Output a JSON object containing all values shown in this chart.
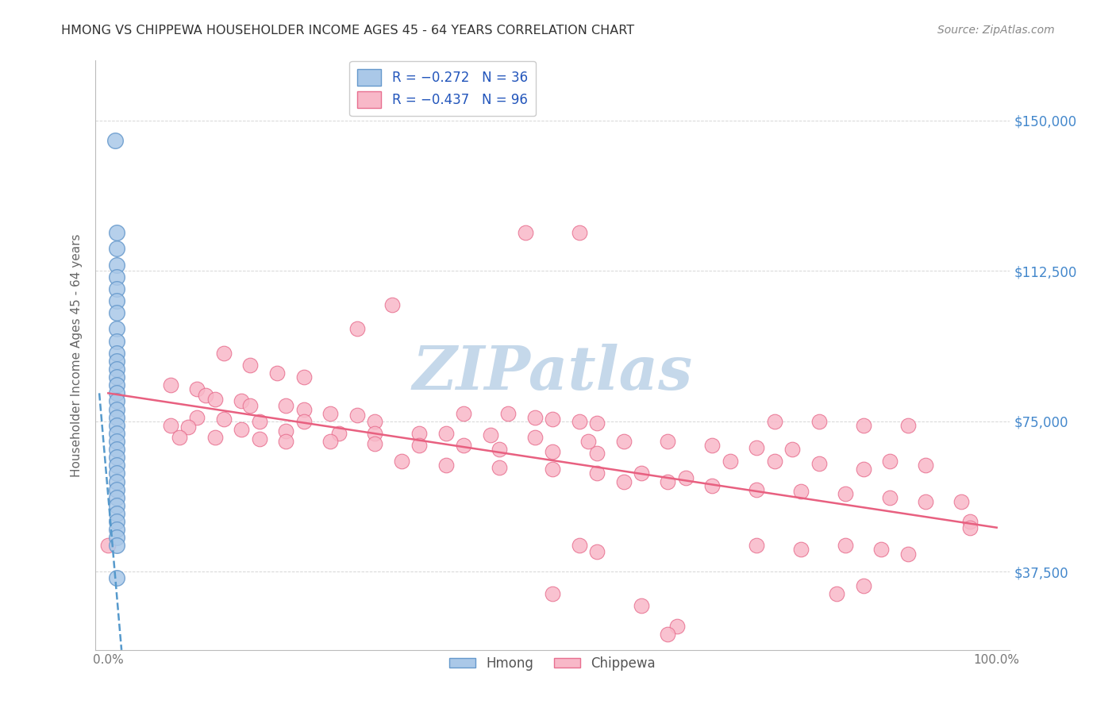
{
  "title": "HMONG VS CHIPPEWA HOUSEHOLDER INCOME AGES 45 - 64 YEARS CORRELATION CHART",
  "source": "Source: ZipAtlas.com",
  "ylabel": "Householder Income Ages 45 - 64 years",
  "y_tick_labels": [
    "$37,500",
    "$75,000",
    "$112,500",
    "$150,000"
  ],
  "y_tick_values": [
    37500,
    75000,
    112500,
    150000
  ],
  "ylim": [
    18000,
    165000
  ],
  "xlim": [
    -0.015,
    1.015
  ],
  "hmong_color": "#aac8e8",
  "hmong_edge_color": "#6699cc",
  "chippewa_color": "#f8b8c8",
  "chippewa_edge_color": "#e87090",
  "hmong_line_color": "#5599cc",
  "chippewa_line_color": "#e86080",
  "watermark": "ZIPatlas",
  "watermark_color": "#c5d8ea",
  "grid_color": "#cccccc",
  "title_color": "#333333",
  "source_color": "#888888",
  "axis_label_color": "#666666",
  "tick_label_color": "#777777",
  "right_tick_color": "#4488cc",
  "hmong_points": [
    [
      0.008,
      145000
    ],
    [
      0.01,
      122000
    ],
    [
      0.01,
      118000
    ],
    [
      0.01,
      114000
    ],
    [
      0.01,
      111000
    ],
    [
      0.01,
      108000
    ],
    [
      0.01,
      105000
    ],
    [
      0.01,
      102000
    ],
    [
      0.01,
      98000
    ],
    [
      0.01,
      95000
    ],
    [
      0.01,
      92000
    ],
    [
      0.01,
      90000
    ],
    [
      0.01,
      88000
    ],
    [
      0.01,
      86000
    ],
    [
      0.01,
      84000
    ],
    [
      0.01,
      82000
    ],
    [
      0.01,
      80000
    ],
    [
      0.01,
      78000
    ],
    [
      0.01,
      76000
    ],
    [
      0.01,
      74000
    ],
    [
      0.01,
      72000
    ],
    [
      0.01,
      70000
    ],
    [
      0.01,
      68000
    ],
    [
      0.01,
      66000
    ],
    [
      0.01,
      64000
    ],
    [
      0.01,
      62000
    ],
    [
      0.01,
      60000
    ],
    [
      0.01,
      58000
    ],
    [
      0.01,
      56000
    ],
    [
      0.01,
      54000
    ],
    [
      0.01,
      52000
    ],
    [
      0.01,
      50000
    ],
    [
      0.01,
      48000
    ],
    [
      0.01,
      46000
    ],
    [
      0.01,
      44000
    ],
    [
      0.01,
      36000
    ]
  ],
  "chippewa_points": [
    [
      0.47,
      122000
    ],
    [
      0.53,
      122000
    ],
    [
      0.32,
      104000
    ],
    [
      0.28,
      98000
    ],
    [
      0.13,
      92000
    ],
    [
      0.16,
      89000
    ],
    [
      0.19,
      87000
    ],
    [
      0.22,
      86000
    ],
    [
      0.07,
      84000
    ],
    [
      0.1,
      83000
    ],
    [
      0.11,
      81500
    ],
    [
      0.12,
      80500
    ],
    [
      0.15,
      80000
    ],
    [
      0.16,
      79000
    ],
    [
      0.2,
      79000
    ],
    [
      0.22,
      78000
    ],
    [
      0.25,
      77000
    ],
    [
      0.28,
      76500
    ],
    [
      0.1,
      76000
    ],
    [
      0.13,
      75500
    ],
    [
      0.17,
      75000
    ],
    [
      0.22,
      75000
    ],
    [
      0.3,
      75000
    ],
    [
      0.07,
      74000
    ],
    [
      0.09,
      73500
    ],
    [
      0.15,
      73000
    ],
    [
      0.2,
      72500
    ],
    [
      0.26,
      72000
    ],
    [
      0.3,
      72000
    ],
    [
      0.35,
      72000
    ],
    [
      0.08,
      71000
    ],
    [
      0.12,
      71000
    ],
    [
      0.17,
      70500
    ],
    [
      0.2,
      70000
    ],
    [
      0.25,
      70000
    ],
    [
      0.3,
      69500
    ],
    [
      0.35,
      69000
    ],
    [
      0.4,
      69000
    ],
    [
      0.44,
      68000
    ],
    [
      0.5,
      67500
    ],
    [
      0.55,
      67000
    ],
    [
      0.4,
      77000
    ],
    [
      0.45,
      77000
    ],
    [
      0.48,
      76000
    ],
    [
      0.5,
      75500
    ],
    [
      0.53,
      75000
    ],
    [
      0.55,
      74500
    ],
    [
      0.33,
      65000
    ],
    [
      0.38,
      64000
    ],
    [
      0.44,
      63500
    ],
    [
      0.5,
      63000
    ],
    [
      0.55,
      62000
    ],
    [
      0.6,
      62000
    ],
    [
      0.65,
      61000
    ],
    [
      0.38,
      72000
    ],
    [
      0.43,
      71500
    ],
    [
      0.48,
      71000
    ],
    [
      0.54,
      70000
    ],
    [
      0.58,
      70000
    ],
    [
      0.63,
      70000
    ],
    [
      0.68,
      69000
    ],
    [
      0.73,
      68500
    ],
    [
      0.77,
      68000
    ],
    [
      0.58,
      60000
    ],
    [
      0.63,
      60000
    ],
    [
      0.68,
      59000
    ],
    [
      0.73,
      58000
    ],
    [
      0.78,
      57500
    ],
    [
      0.83,
      57000
    ],
    [
      0.7,
      65000
    ],
    [
      0.75,
      65000
    ],
    [
      0.8,
      64500
    ],
    [
      0.85,
      63000
    ],
    [
      0.75,
      75000
    ],
    [
      0.8,
      75000
    ],
    [
      0.85,
      74000
    ],
    [
      0.9,
      74000
    ],
    [
      0.88,
      65000
    ],
    [
      0.92,
      64000
    ],
    [
      0.88,
      56000
    ],
    [
      0.92,
      55000
    ],
    [
      0.96,
      55000
    ],
    [
      0.97,
      50000
    ],
    [
      0.97,
      48500
    ],
    [
      0.83,
      44000
    ],
    [
      0.87,
      43000
    ],
    [
      0.9,
      42000
    ],
    [
      0.85,
      34000
    ],
    [
      0.6,
      29000
    ],
    [
      0.64,
      24000
    ],
    [
      0.63,
      22000
    ],
    [
      0.5,
      32000
    ],
    [
      0.53,
      44000
    ],
    [
      0.55,
      42500
    ],
    [
      0.82,
      32000
    ],
    [
      0.73,
      44000
    ],
    [
      0.78,
      43000
    ],
    [
      0.0,
      44000
    ]
  ]
}
